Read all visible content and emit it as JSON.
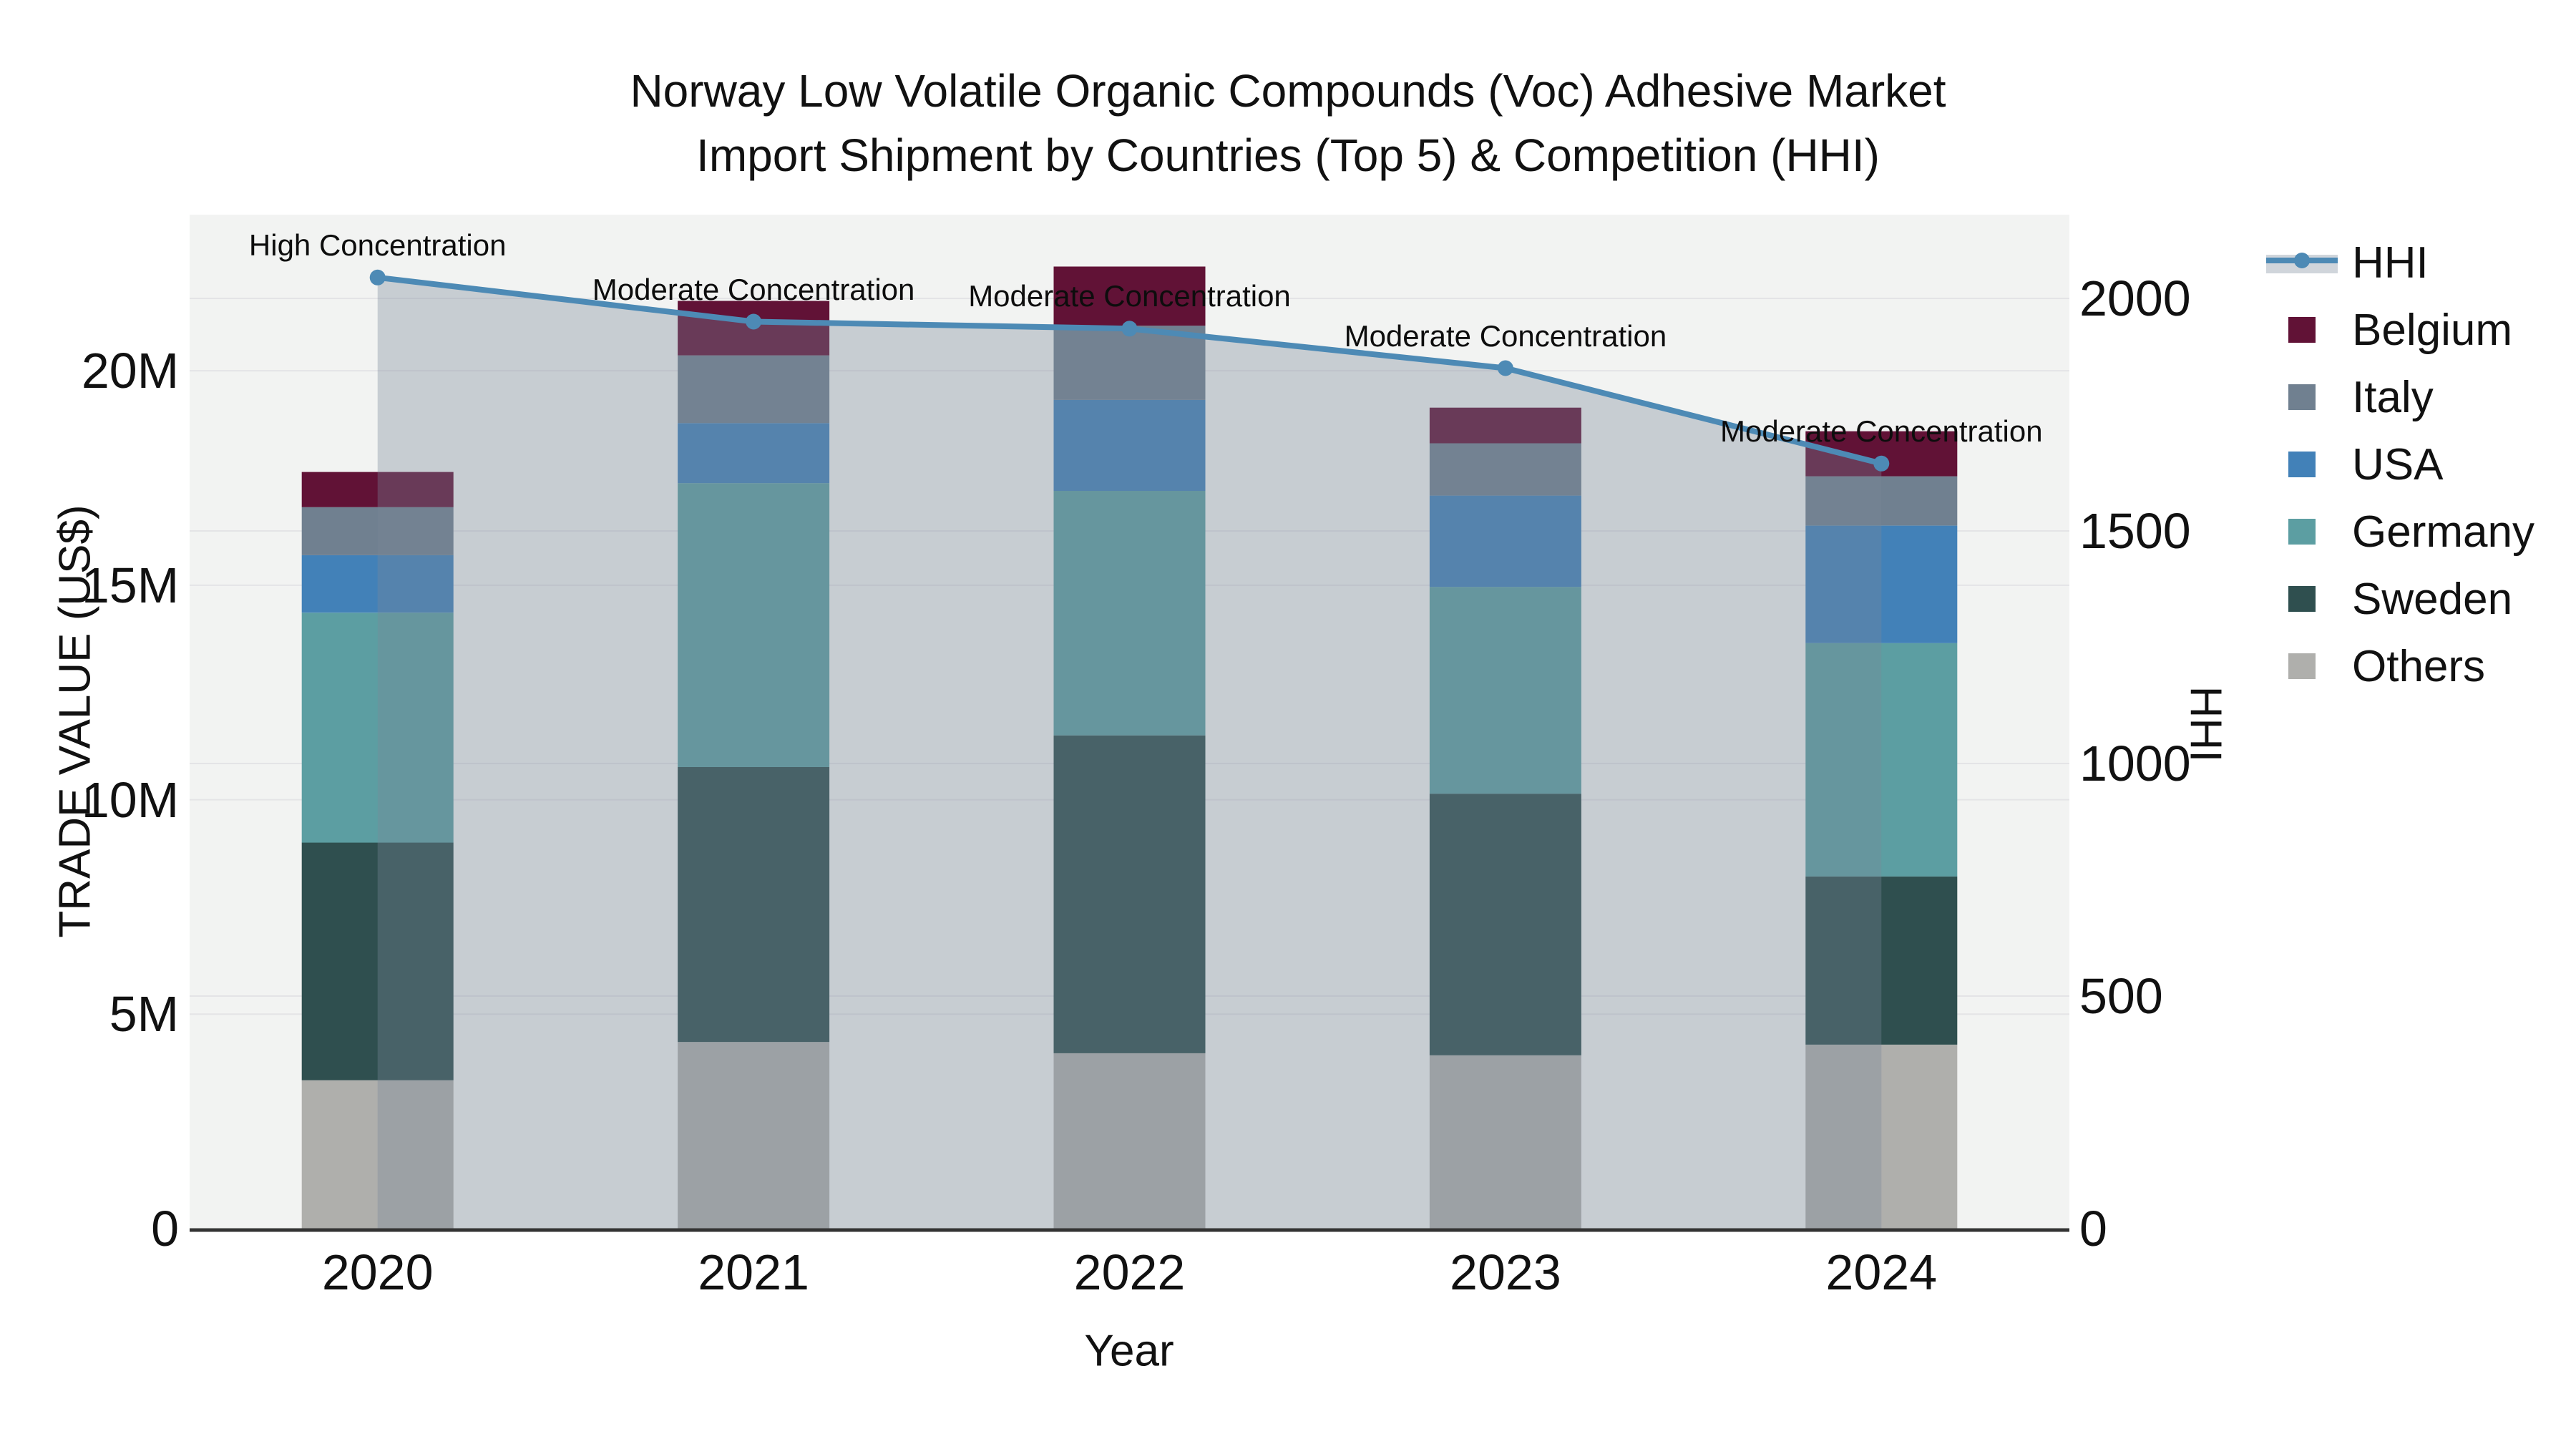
{
  "chart_data": {
    "type": "bar",
    "subtype": "stacked-bar-with-line",
    "title_line1": "Norway Low Volatile Organic Compounds (Voc) Adhesive Market",
    "title_line2": "Import Shipment by Countries (Top 5) & Competition (HHI)",
    "xlabel": "Year",
    "categories": [
      "2020",
      "2021",
      "2022",
      "2023",
      "2024"
    ],
    "values_unit": "million US$",
    "series": [
      {
        "name": "Others",
        "color": "#AFAFAC",
        "values": [
          3.46,
          4.35,
          4.09,
          4.04,
          4.29
        ]
      },
      {
        "name": "Sweden",
        "color": "#2F4F4F",
        "values": [
          5.54,
          6.41,
          7.41,
          6.1,
          3.92
        ]
      },
      {
        "name": "Germany",
        "color": "#5C9EA2",
        "values": [
          5.36,
          6.62,
          5.7,
          4.82,
          5.44
        ]
      },
      {
        "name": "USA",
        "color": "#4281B8",
        "values": [
          1.34,
          1.4,
          2.12,
          2.13,
          2.74
        ]
      },
      {
        "name": "Italy",
        "color": "#708090",
        "values": [
          1.12,
          1.58,
          1.73,
          1.22,
          1.15
        ]
      },
      {
        "name": "Belgium",
        "color": "#611236",
        "values": [
          0.82,
          1.27,
          1.38,
          0.83,
          1.05
        ]
      }
    ],
    "totals": [
      17.64,
      21.63,
      22.43,
      19.14,
      18.59
    ],
    "hhi": {
      "name": "HHI",
      "values": [
        2045,
        1950,
        1935,
        1850,
        1645
      ],
      "line_color": "#4D8AB5",
      "fill_color": "rgba(119,136,153,0.35)"
    },
    "annotations": [
      {
        "x": "2020",
        "text": "High Concentration"
      },
      {
        "x": "2021",
        "text": "Moderate Concentration"
      },
      {
        "x": "2022",
        "text": "Moderate Concentration"
      },
      {
        "x": "2023",
        "text": "Moderate Concentration"
      },
      {
        "x": "2024",
        "text": "Moderate Concentration"
      }
    ],
    "yaxis_left": {
      "title": "TRADE VALUE (US$)",
      "tick_labels": [
        "0",
        "5M",
        "10M",
        "15M",
        "20M"
      ],
      "tick_values": [
        0,
        5,
        10,
        15,
        20
      ],
      "max": 23.64
    },
    "yaxis_right": {
      "title": "HHI",
      "tick_labels": [
        "0",
        "500",
        "1000",
        "1500",
        "2000"
      ],
      "tick_values": [
        0,
        500,
        1000,
        1500,
        2000
      ],
      "max": 2180
    },
    "legend_order": [
      "HHI",
      "Belgium",
      "Italy",
      "USA",
      "Germany",
      "Sweden",
      "Others"
    ],
    "grid": true,
    "legend_position": "right",
    "colors": {
      "figure_bg": "#ffffff",
      "plot_bg": "#f2f3f2",
      "gridline": "#e4e4e6",
      "axis_line": "#333333",
      "text": "#111111"
    }
  }
}
